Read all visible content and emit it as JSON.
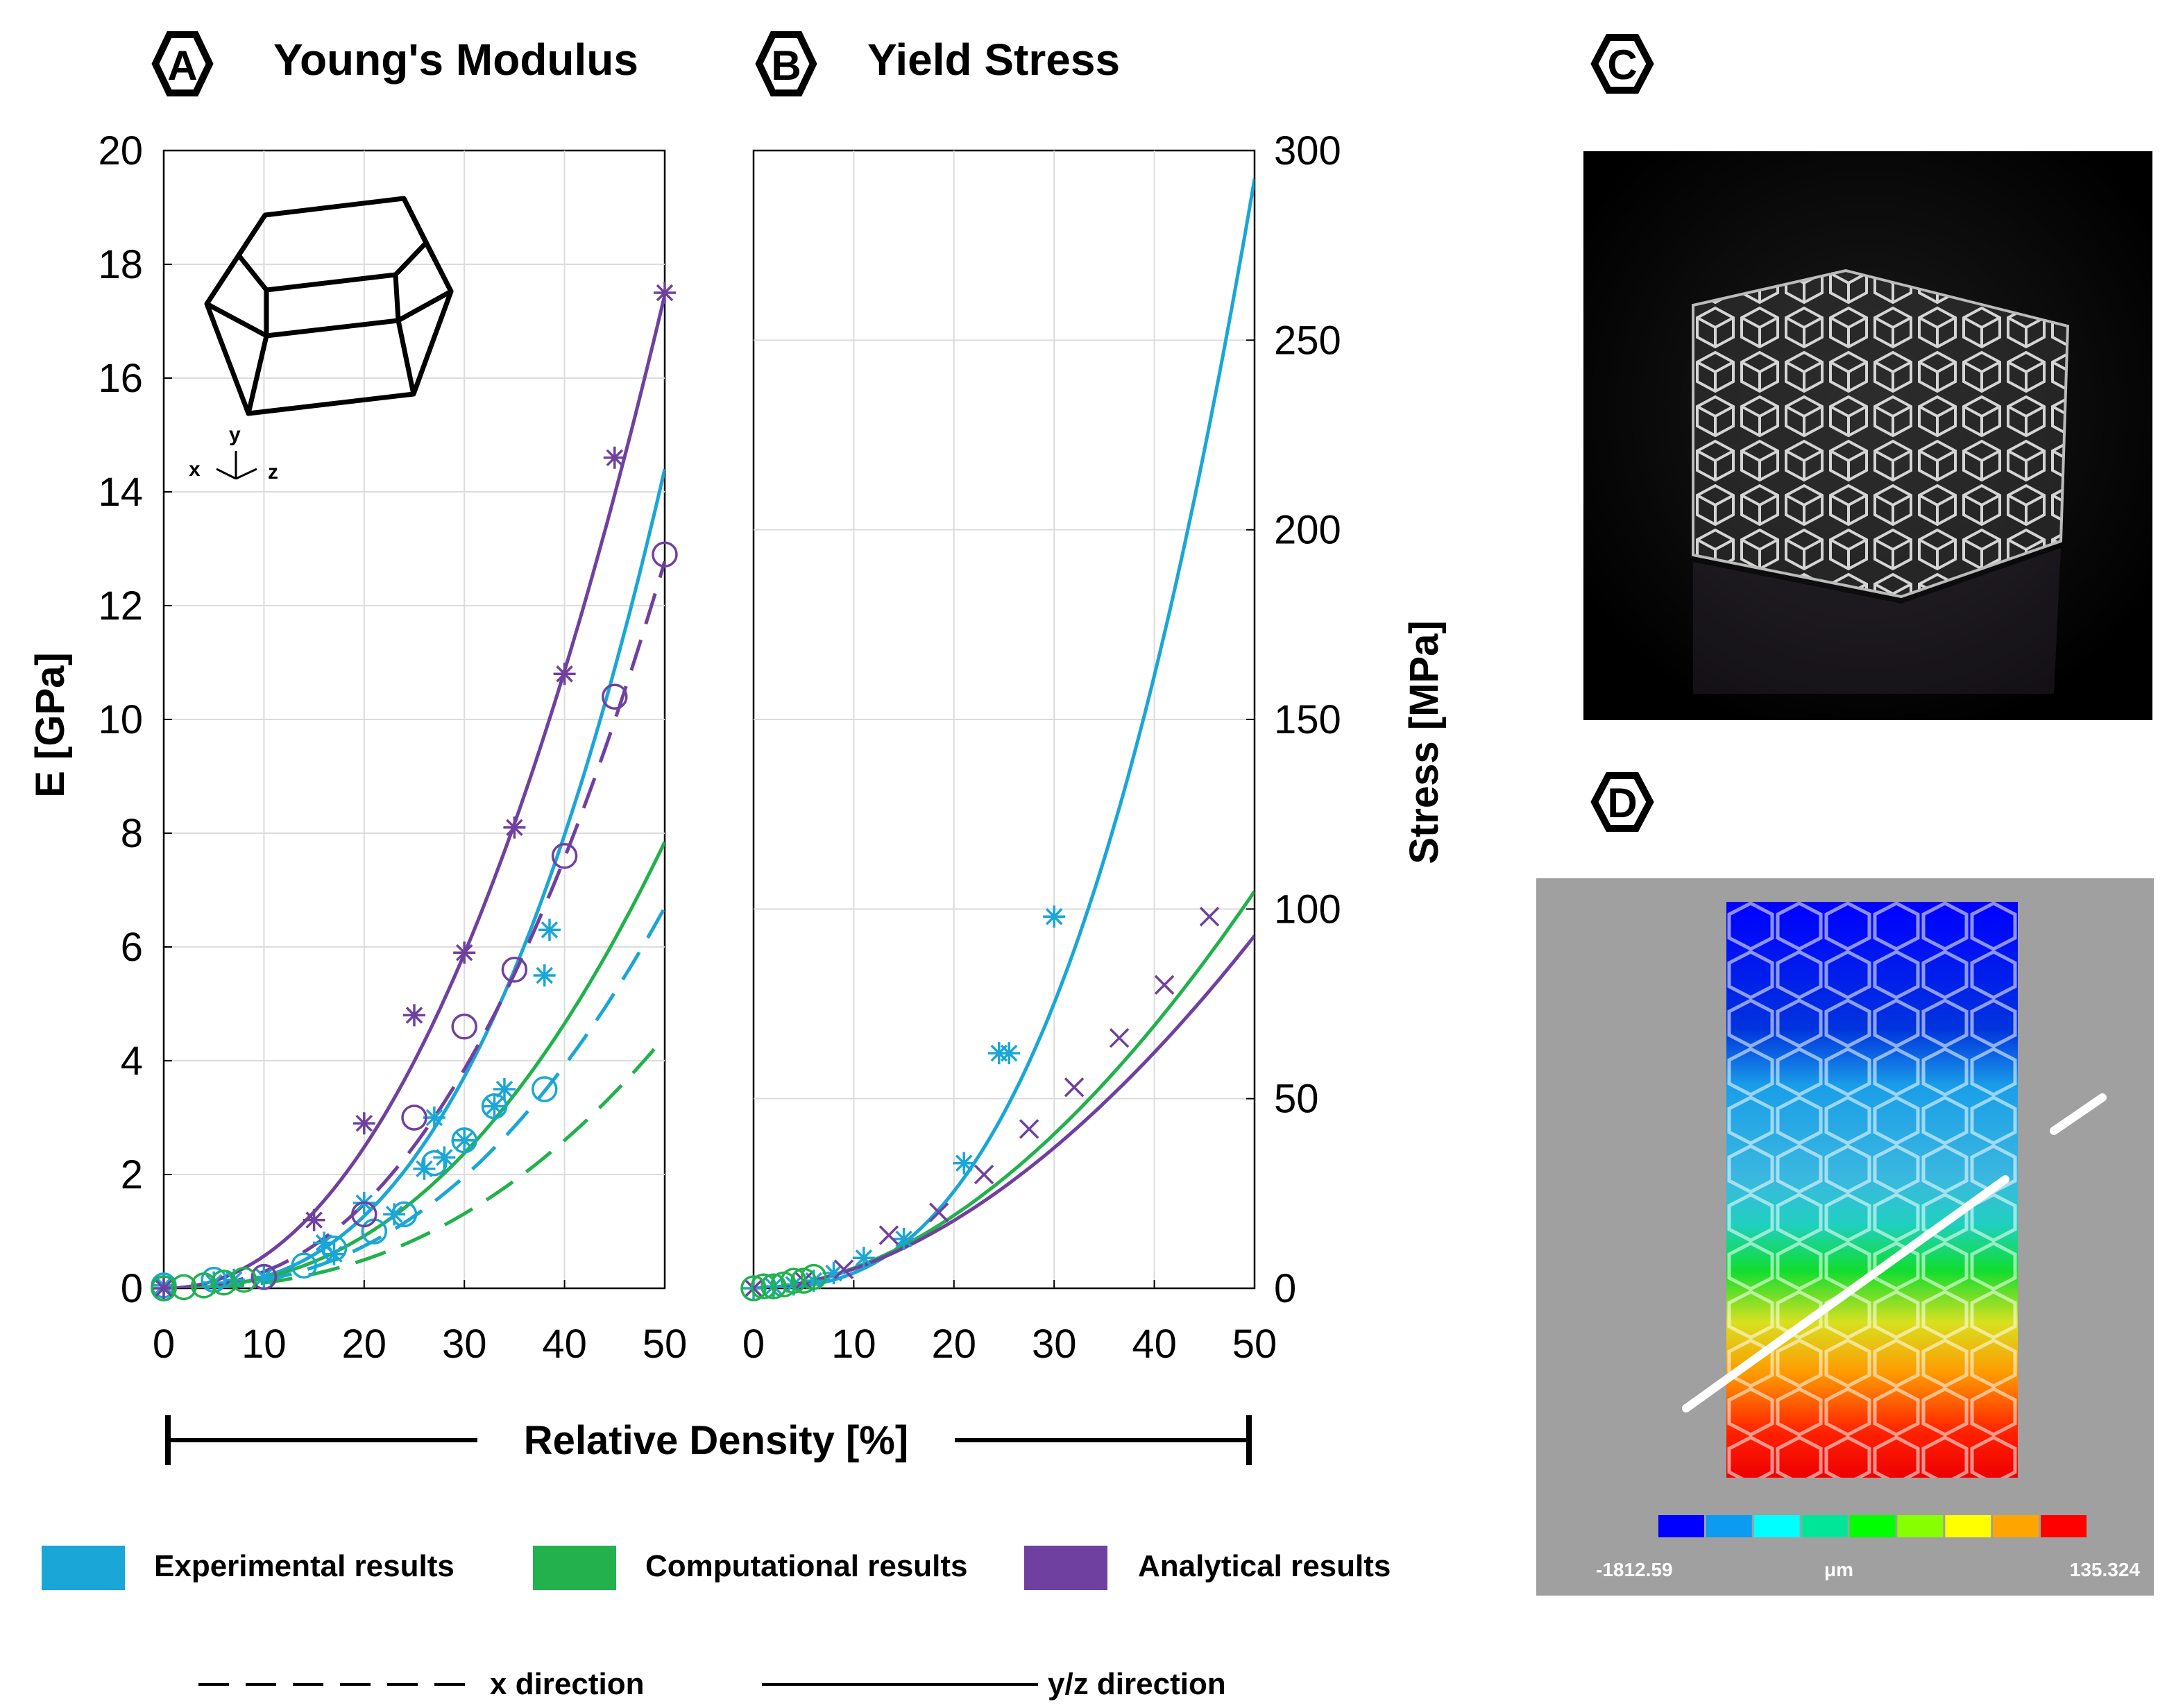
{
  "chart_data": [
    {
      "panel": "A",
      "type": "line",
      "title": "Young's Modulus",
      "xlabel": "Relative Density [%]",
      "ylabel": "E [GPa]",
      "xlim": [
        0,
        50
      ],
      "ylim": [
        0,
        20
      ],
      "xticks": [
        0,
        10,
        20,
        30,
        40,
        50
      ],
      "yticks": [
        0,
        2,
        4,
        6,
        8,
        10,
        12,
        14,
        16,
        18,
        20
      ],
      "grid": true,
      "inset_axes_label": {
        "x": "x",
        "y": "y",
        "z": "z"
      },
      "curves": [
        {
          "name": "Experimental y/z fit",
          "color": "#1aa6d6",
          "dash": false,
          "coef": 0.000453,
          "exp": 2.65
        },
        {
          "name": "Experimental x fit",
          "color": "#1aa6d6",
          "dash": true,
          "coef": 0.00056,
          "exp": 2.4
        },
        {
          "name": "Computational y/z fit",
          "color": "#22b14c",
          "dash": false,
          "coef": 0.00083,
          "exp": 2.34
        },
        {
          "name": "Computational x fit",
          "color": "#22b14c",
          "dash": true,
          "coef": 0.0004,
          "exp": 2.38
        },
        {
          "name": "Analytical y/z fit",
          "color": "#7040a0",
          "dash": false,
          "coef": 0.0042,
          "exp": 2.13
        },
        {
          "name": "Analytical x fit",
          "color": "#7040a0",
          "dash": true,
          "coef": 0.0013,
          "exp": 2.35
        }
      ],
      "markers": [
        {
          "name": "Experimental y/z",
          "color": "#1aa6d6",
          "shape": "asterisk",
          "x": [
            0,
            5,
            7,
            10,
            16,
            17,
            20,
            23,
            26,
            27,
            28,
            30,
            33,
            34,
            38,
            38.5
          ],
          "y": [
            0.05,
            0.1,
            0.15,
            0.2,
            0.8,
            0.6,
            1.5,
            1.3,
            2.1,
            3.0,
            2.3,
            2.6,
            3.2,
            3.5,
            5.5,
            6.3
          ]
        },
        {
          "name": "Experimental x",
          "color": "#1aa6d6",
          "shape": "circle",
          "x": [
            0,
            5,
            10,
            14,
            17,
            21,
            24,
            27,
            30,
            33,
            38
          ],
          "y": [
            0.05,
            0.15,
            0.2,
            0.4,
            0.7,
            1.0,
            1.3,
            2.2,
            2.6,
            3.2,
            3.5
          ]
        },
        {
          "name": "Analytical y/z",
          "color": "#7040a0",
          "shape": "asterisk",
          "x": [
            0,
            15,
            20,
            25,
            30,
            35,
            40,
            45,
            50
          ],
          "y": [
            0,
            1.2,
            2.9,
            4.8,
            5.9,
            8.1,
            10.8,
            14.6,
            17.5
          ]
        },
        {
          "name": "Analytical x",
          "color": "#7040a0",
          "shape": "circle",
          "x": [
            0,
            10,
            20,
            25,
            30,
            35,
            40,
            45,
            50
          ],
          "y": [
            0,
            0.2,
            1.3,
            3.0,
            4.6,
            5.6,
            7.6,
            10.4,
            12.9
          ]
        },
        {
          "name": "Computational",
          "color": "#22b14c",
          "shape": "circle",
          "x": [
            0,
            2,
            4,
            6,
            8
          ],
          "y": [
            0,
            0.02,
            0.05,
            0.1,
            0.15
          ]
        }
      ]
    },
    {
      "panel": "B",
      "type": "line",
      "title": "Yield Stress",
      "xlabel": "Relative Density [%]",
      "ylabel": "Stress [MPa]",
      "xlim": [
        0,
        50
      ],
      "ylim": [
        0,
        300
      ],
      "xticks": [
        0,
        10,
        20,
        30,
        40,
        50
      ],
      "yticks": [
        0,
        50,
        100,
        150,
        200,
        250,
        300
      ],
      "yaxis_side": "right",
      "grid": true,
      "curves": [
        {
          "name": "Experimental y/z fit",
          "color": "#1aa6d6",
          "dash": false,
          "coef": 0.00885,
          "exp": 2.66
        },
        {
          "name": "Computational y/z fit",
          "color": "#22b14c",
          "dash": false,
          "coef": 0.0753,
          "exp": 1.85
        },
        {
          "name": "Analytical y/z fit",
          "color": "#7040a0",
          "dash": false,
          "coef": 0.0813,
          "exp": 1.8
        }
      ],
      "markers": [
        {
          "name": "Experimental",
          "color": "#1aa6d6",
          "shape": "asterisk",
          "x": [
            0,
            2,
            4,
            6,
            8,
            11,
            15,
            21,
            24.5,
            25.5,
            30
          ],
          "y": [
            0,
            0.5,
            1,
            2,
            4,
            8,
            13,
            33,
            62,
            62,
            98
          ]
        },
        {
          "name": "Analytical",
          "color": "#7040a0",
          "shape": "cross",
          "x": [
            0,
            5,
            9,
            13.5,
            18.5,
            23,
            27.5,
            32,
            36.5,
            41,
            45.5
          ],
          "y": [
            0,
            2,
            5,
            14,
            20,
            30,
            42,
            53,
            66,
            80,
            98
          ]
        },
        {
          "name": "Computational",
          "color": "#22b14c",
          "shape": "circle",
          "x": [
            0,
            1,
            2,
            3,
            4,
            5,
            6
          ],
          "y": [
            0,
            0.5,
            0.5,
            1,
            2,
            2,
            3
          ]
        }
      ]
    }
  ],
  "panels": {
    "a": {
      "letter": "A"
    },
    "b": {
      "letter": "B"
    },
    "c": {
      "letter": "C",
      "description_icon": "lattice-photo"
    },
    "d": {
      "letter": "D"
    }
  },
  "density_axis": {
    "label": "Relative Density [%]"
  },
  "legend": {
    "items": [
      {
        "label": "Experimental results",
        "color": "#1aa6d6"
      },
      {
        "label": "Computational results",
        "color": "#22b14c"
      },
      {
        "label": "Analytical results",
        "color": "#7040a0"
      }
    ],
    "x_direction": "x direction",
    "yz_direction": "y/z direction"
  },
  "colorbar": {
    "min_label": "-1812.59",
    "unit_label": "μm",
    "max_label": "135.324",
    "colors": [
      "#0000ff",
      "#0b9bf0",
      "#00ffff",
      "#00e699",
      "#00ff00",
      "#88ff00",
      "#ffff00",
      "#ffa500",
      "#ff0000"
    ]
  }
}
